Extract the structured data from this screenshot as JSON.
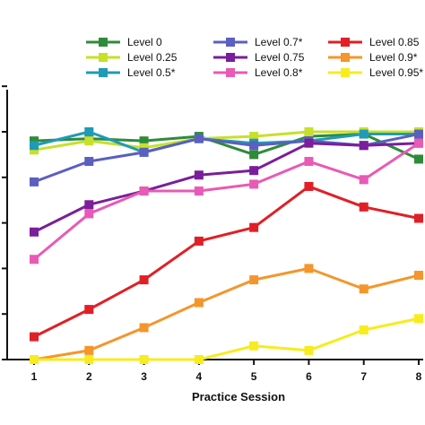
{
  "chart_data": {
    "type": "line",
    "xlabel": "Practice Session",
    "ylabel": "",
    "x": [
      1,
      2,
      3,
      4,
      5,
      6,
      7,
      8
    ],
    "xlim": [
      1,
      8
    ],
    "ylim": [
      0,
      1
    ],
    "grid": false,
    "legend_position": "top",
    "series": [
      {
        "name": "Level 0",
        "color": "#2e8b3a",
        "values": [
          0.96,
          0.97,
          0.96,
          0.98,
          0.9,
          0.98,
          0.99,
          0.88
        ]
      },
      {
        "name": "Level 0.25",
        "color": "#c8e02a",
        "values": [
          0.92,
          0.96,
          0.93,
          0.97,
          0.98,
          1.0,
          1.0,
          1.0
        ]
      },
      {
        "name": "Level 0.5*",
        "color": "#1f9bb8",
        "values": [
          0.94,
          1.0,
          0.91,
          0.97,
          0.95,
          0.96,
          0.99,
          0.99
        ]
      },
      {
        "name": "Level 0.7*",
        "color": "#5b5fc0",
        "values": [
          0.78,
          0.87,
          0.91,
          0.97,
          0.94,
          0.96,
          0.94,
          0.99
        ]
      },
      {
        "name": "Level 0.75",
        "color": "#7a1e9b",
        "values": [
          0.56,
          0.68,
          0.74,
          0.81,
          0.83,
          0.95,
          0.94,
          0.95
        ]
      },
      {
        "name": "Level 0.8*",
        "color": "#e85ab5",
        "values": [
          0.44,
          0.64,
          0.74,
          0.74,
          0.77,
          0.87,
          0.79,
          0.95
        ]
      },
      {
        "name": "Level 0.85",
        "color": "#e11f26",
        "values": [
          0.1,
          0.22,
          0.35,
          0.52,
          0.58,
          0.76,
          0.67,
          0.62
        ]
      },
      {
        "name": "Level 0.9*",
        "color": "#f4962b",
        "values": [
          0.0,
          0.04,
          0.14,
          0.25,
          0.35,
          0.4,
          0.31,
          0.37
        ]
      },
      {
        "name": "Level 0.95*",
        "color": "#f7ec1d",
        "values": [
          0.0,
          0.0,
          0.0,
          0.0,
          0.06,
          0.04,
          0.13,
          0.18
        ]
      }
    ]
  }
}
